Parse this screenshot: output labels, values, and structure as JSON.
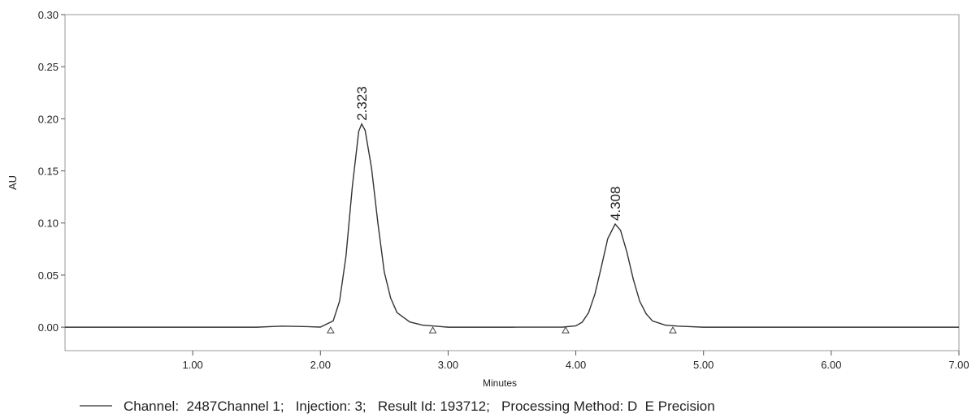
{
  "chart_data": {
    "type": "line",
    "x_label": "Minutes",
    "y_label": "AU",
    "xlim": [
      0,
      7.0
    ],
    "ylim": [
      -0.0225,
      0.3
    ],
    "xticks": [
      {
        "value": 1,
        "label": "1.00"
      },
      {
        "value": 2,
        "label": "2.00"
      },
      {
        "value": 3,
        "label": "3.00"
      },
      {
        "value": 4,
        "label": "4.00"
      },
      {
        "value": 5,
        "label": "5.00"
      },
      {
        "value": 6,
        "label": "6.00"
      },
      {
        "value": 7,
        "label": "7.00"
      }
    ],
    "yticks": [
      {
        "value": 0,
        "label": "0.00"
      },
      {
        "value": 0.05,
        "label": "0.05"
      },
      {
        "value": 0.1,
        "label": "0.10"
      },
      {
        "value": 0.15,
        "label": "0.15"
      },
      {
        "value": 0.2,
        "label": "0.20"
      },
      {
        "value": 0.25,
        "label": "0.25"
      },
      {
        "value": 0.3,
        "label": "0.30"
      }
    ],
    "x": [
      0,
      0.5,
      1.0,
      1.5,
      1.7,
      1.9,
      2.0,
      2.1,
      2.15,
      2.2,
      2.25,
      2.3,
      2.323,
      2.35,
      2.4,
      2.45,
      2.5,
      2.55,
      2.6,
      2.7,
      2.8,
      2.9,
      3.0,
      3.5,
      3.9,
      4.0,
      4.05,
      4.1,
      4.15,
      4.2,
      4.25,
      4.308,
      4.35,
      4.4,
      4.45,
      4.5,
      4.55,
      4.6,
      4.7,
      4.8,
      5.0,
      6.0,
      7.0
    ],
    "series": [
      {
        "name": "Channel:  2487Channel 1;   Injection: 3;   Result Id: 193712;   Processing Method: D  E Precision",
        "color": "#333333",
        "values": [
          0,
          0,
          0,
          0,
          0.001,
          0.0005,
          0.0001,
          0.006,
          0.025,
          0.068,
          0.135,
          0.188,
          0.195,
          0.189,
          0.153,
          0.1,
          0.053,
          0.028,
          0.014,
          0.005,
          0.002,
          0.001,
          0,
          0,
          0.0001,
          0.0013,
          0.0048,
          0.014,
          0.032,
          0.058,
          0.085,
          0.099,
          0.093,
          0.072,
          0.046,
          0.025,
          0.013,
          0.006,
          0.002,
          0.001,
          0,
          0,
          0
        ]
      }
    ],
    "annotations": [
      {
        "text": "2.323",
        "x": 2.323,
        "y": 0.195
      },
      {
        "text": "4.308",
        "x": 4.308,
        "y": 0.099
      }
    ],
    "integration_markers": [
      2.08,
      2.88,
      3.92,
      4.76
    ]
  }
}
